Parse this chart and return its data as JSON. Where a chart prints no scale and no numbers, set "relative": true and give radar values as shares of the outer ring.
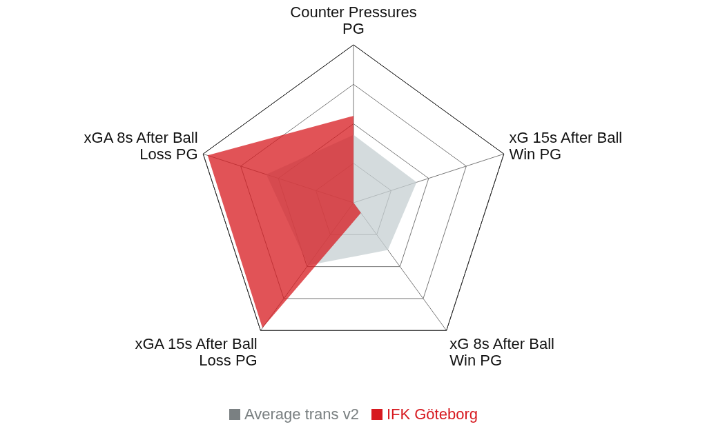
{
  "chart_data": {
    "type": "radar",
    "relative": true,
    "categories": [
      "Counter Pressures PG",
      "xG 15s After Ball Win PG",
      "xG 8s After Ball Win PG",
      "xGA 15s After Ball Loss PG",
      "xGA 8s After Ball Loss PG"
    ],
    "series": [
      {
        "name": "Average trans v2",
        "color": "#c5cfd1",
        "values": [
          0.43,
          0.42,
          0.37,
          0.49,
          0.58
        ]
      },
      {
        "name": "IFK Göteborg",
        "color": "#d7191f",
        "values": [
          0.55,
          0,
          0.08,
          0.98,
          0.97
        ]
      }
    ],
    "grid": true,
    "legend": "bottom"
  }
}
